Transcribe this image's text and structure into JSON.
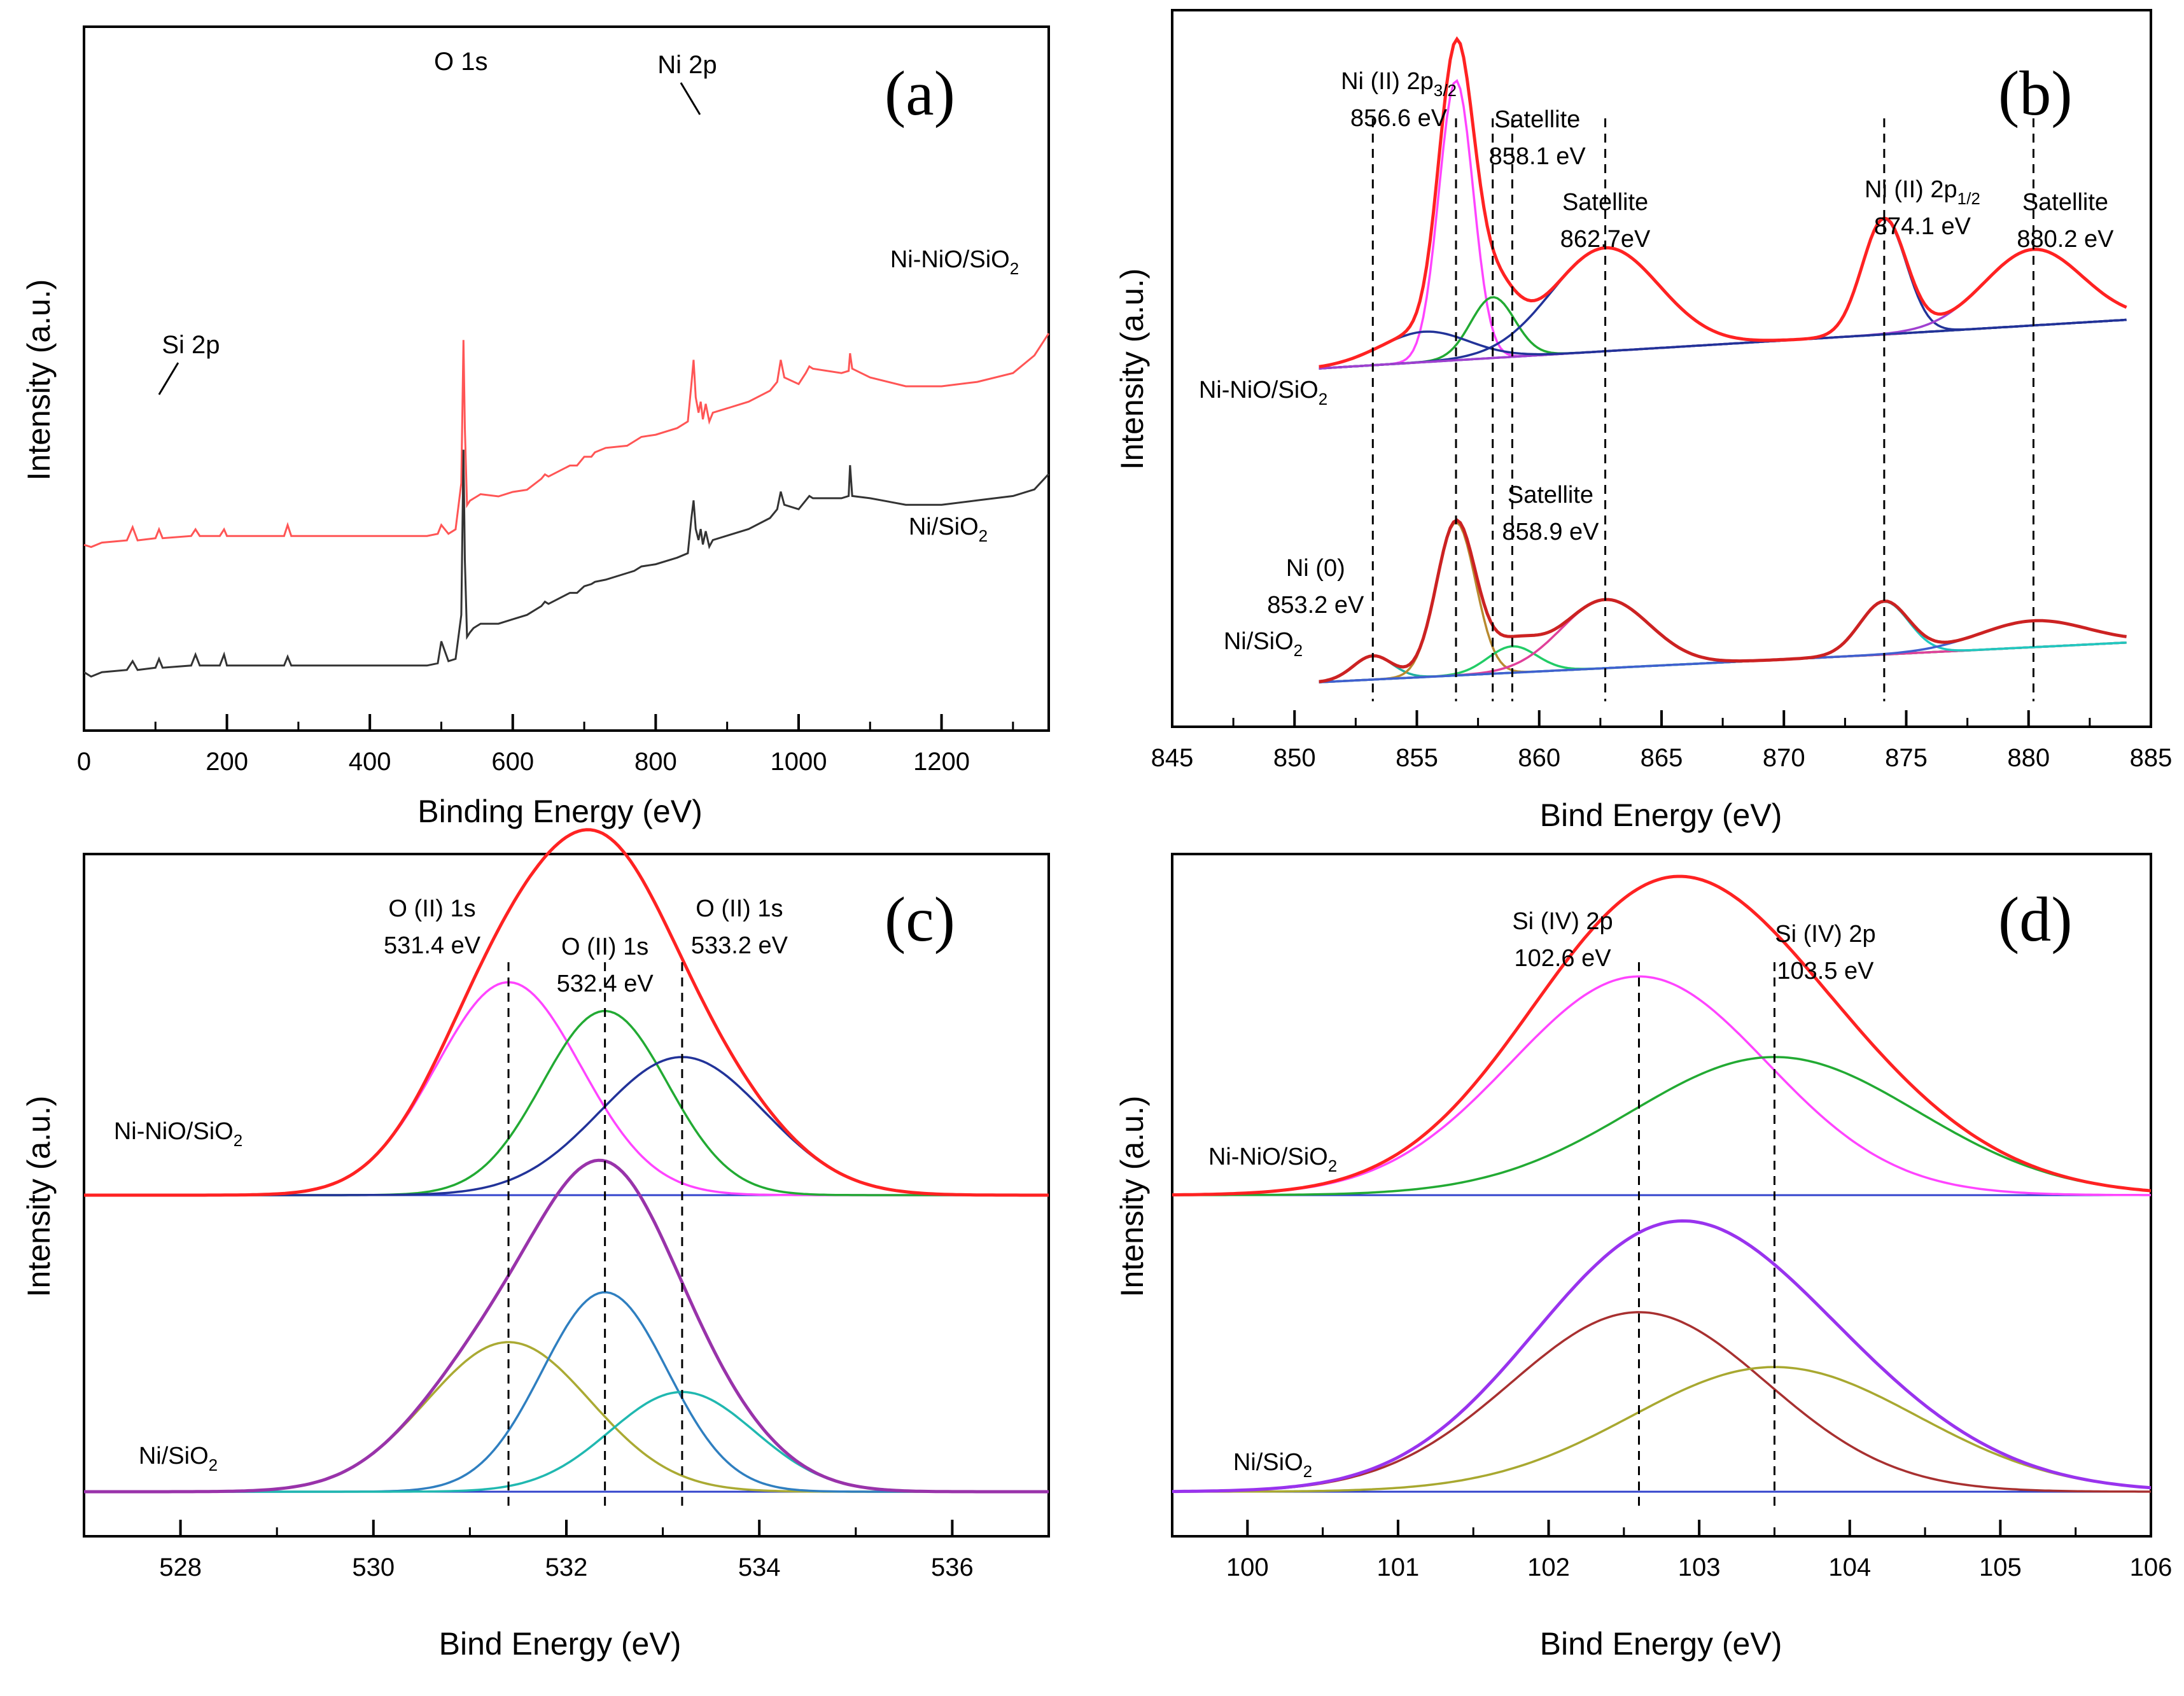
{
  "chart_data": [
    {
      "panel": "(a)",
      "type": "line",
      "title": "",
      "xlabel": "Binding Energy (eV)",
      "ylabel": "Intensity (a.u.)",
      "xlim": [
        0,
        1350
      ],
      "xticks": [
        0,
        200,
        400,
        600,
        800,
        1000,
        1200
      ],
      "series": [
        {
          "name": "Ni-NiO/SiO2",
          "label_main": "Ni-NiO/SiO",
          "label_sub": "2",
          "color": "#ff5555",
          "offset": 0.53,
          "x": [
            0,
            10,
            25,
            60,
            68,
            75,
            100,
            105,
            110,
            150,
            156,
            162,
            190,
            196,
            200,
            280,
            285,
            290,
            480,
            495,
            500,
            510,
            520,
            528,
            531,
            533,
            536,
            540,
            545,
            550,
            555,
            580,
            600,
            620,
            640,
            645,
            650,
            680,
            690,
            700,
            710,
            715,
            730,
            760,
            770,
            780,
            800,
            830,
            845,
            850,
            853,
            856,
            860,
            863,
            866,
            870,
            875,
            880,
            900,
            930,
            960,
            970,
            975,
            980,
            1000,
            1010,
            1015,
            1020,
            1060,
            1070,
            1072,
            1075,
            1100,
            1150,
            1200,
            1250,
            1300,
            1330,
            1350
          ],
          "y": [
            0.02,
            0.01,
            0.03,
            0.04,
            0.1,
            0.04,
            0.05,
            0.09,
            0.05,
            0.06,
            0.09,
            0.06,
            0.06,
            0.09,
            0.06,
            0.06,
            0.11,
            0.06,
            0.06,
            0.07,
            0.11,
            0.07,
            0.09,
            0.3,
            0.95,
            0.55,
            0.2,
            0.22,
            0.23,
            0.24,
            0.25,
            0.24,
            0.26,
            0.27,
            0.32,
            0.34,
            0.33,
            0.38,
            0.38,
            0.42,
            0.42,
            0.44,
            0.46,
            0.47,
            0.49,
            0.51,
            0.52,
            0.55,
            0.58,
            0.75,
            0.86,
            0.69,
            0.62,
            0.67,
            0.59,
            0.66,
            0.58,
            0.62,
            0.64,
            0.67,
            0.72,
            0.76,
            0.86,
            0.78,
            0.75,
            0.8,
            0.83,
            0.82,
            0.8,
            0.81,
            0.89,
            0.82,
            0.78,
            0.74,
            0.74,
            0.76,
            0.8,
            0.88,
            0.98
          ]
        },
        {
          "name": "Ni/SiO2",
          "label_main": "Ni/SiO",
          "label_sub": "2",
          "color": "#333333",
          "offset": 0.0,
          "x": [
            0,
            10,
            25,
            60,
            68,
            75,
            100,
            105,
            110,
            150,
            156,
            162,
            190,
            196,
            200,
            280,
            285,
            290,
            480,
            495,
            500,
            510,
            520,
            528,
            531,
            533,
            536,
            540,
            545,
            550,
            555,
            580,
            600,
            620,
            640,
            645,
            650,
            680,
            690,
            700,
            710,
            715,
            730,
            760,
            770,
            780,
            800,
            830,
            845,
            850,
            853,
            856,
            860,
            863,
            866,
            870,
            875,
            880,
            900,
            930,
            960,
            970,
            975,
            980,
            1000,
            1010,
            1015,
            1020,
            1060,
            1070,
            1072,
            1075,
            1100,
            1150,
            1200,
            1250,
            1300,
            1330,
            1350
          ],
          "y": [
            0.04,
            0.02,
            0.04,
            0.05,
            0.09,
            0.05,
            0.06,
            0.1,
            0.06,
            0.07,
            0.12,
            0.07,
            0.07,
            0.12,
            0.07,
            0.07,
            0.11,
            0.07,
            0.07,
            0.08,
            0.18,
            0.09,
            0.1,
            0.3,
            1.05,
            0.55,
            0.2,
            0.22,
            0.24,
            0.25,
            0.26,
            0.26,
            0.28,
            0.3,
            0.34,
            0.36,
            0.35,
            0.4,
            0.4,
            0.43,
            0.44,
            0.45,
            0.46,
            0.49,
            0.5,
            0.52,
            0.53,
            0.56,
            0.58,
            0.74,
            0.82,
            0.69,
            0.64,
            0.69,
            0.62,
            0.68,
            0.61,
            0.64,
            0.66,
            0.69,
            0.74,
            0.78,
            0.86,
            0.8,
            0.78,
            0.82,
            0.84,
            0.83,
            0.83,
            0.84,
            0.98,
            0.84,
            0.83,
            0.8,
            0.8,
            0.82,
            0.84,
            0.87,
            0.94
          ]
        }
      ],
      "annotations": [
        {
          "text": "O 1s",
          "x": 531
        },
        {
          "text": "Ni 2p",
          "x": 853
        },
        {
          "text": "Si 2p",
          "x": 105
        }
      ],
      "peak_x": [
        531,
        853,
        105
      ]
    },
    {
      "panel": "(b)",
      "type": "line",
      "title": "",
      "xlabel": "Bind Energy (eV)",
      "ylabel": "Intensity (a.u.)",
      "xlim": [
        845,
        885
      ],
      "xticks": [
        845,
        850,
        855,
        860,
        865,
        870,
        875,
        880,
        885
      ],
      "samples": [
        {
          "name": "Ni-NiO/SiO2",
          "label_main": "Ni-NiO/SiO",
          "label_sub": "2",
          "baseline": [
            0.0,
            0.16
          ],
          "components": [
            {
              "center": 856.6,
              "height": 0.92,
              "width": 0.7,
              "color": "#ff44ff"
            },
            {
              "center": 858.1,
              "height": 0.2,
              "width": 0.9,
              "color": "#22aa33"
            },
            {
              "center": 862.7,
              "height": 0.34,
              "width": 2.2,
              "color": "#223399"
            },
            {
              "center": 874.1,
              "height": 0.38,
              "width": 0.9,
              "color": "#223399"
            },
            {
              "center": 880.2,
              "height": 0.25,
              "width": 2.0,
              "color": "#a040d0"
            },
            {
              "center": 855.3,
              "height": 0.1,
              "width": 1.8,
              "color": "#223399"
            }
          ],
          "envelope_color": "#ff2222",
          "raw_color": "#111111"
        },
        {
          "name": "Ni/SiO2",
          "label_main": "Ni/SiO",
          "label_sub": "2",
          "baseline": [
            0.0,
            0.15
          ],
          "components": [
            {
              "center": 853.2,
              "height": 0.09,
              "width": 0.8,
              "color": "#20b0a0"
            },
            {
              "center": 856.6,
              "height": 0.58,
              "width": 0.8,
              "color": "#b88a30"
            },
            {
              "center": 858.9,
              "height": 0.1,
              "width": 1.0,
              "color": "#22cc66"
            },
            {
              "center": 862.7,
              "height": 0.26,
              "width": 1.8,
              "color": "#e0409a"
            },
            {
              "center": 874.1,
              "height": 0.2,
              "width": 1.0,
              "color": "#20c8c0"
            },
            {
              "center": 880.2,
              "height": 0.1,
              "width": 2.2,
              "color": "#4060d0"
            }
          ],
          "envelope_color": "#cc2222",
          "raw_color": "#8b1a1a"
        }
      ],
      "peak_labels": [
        {
          "line1_main": "Ni (II) 2p",
          "line1_sub": "3/2",
          "line2": "856.6 eV",
          "x": 856.6
        },
        {
          "line1": "Satellite",
          "line2": "858.1 eV",
          "x": 858.1
        },
        {
          "line1": "Satellite",
          "line2": "862.7eV",
          "x": 862.7
        },
        {
          "line1_main": "Ni (II) 2p",
          "line1_sub": "1/2",
          "line2": "874.1 eV",
          "x": 874.1
        },
        {
          "line1": "Satellite",
          "line2": "880.2 eV",
          "x": 880.2
        },
        {
          "line1": "Satellite",
          "line2": "858.9 eV",
          "x": 858.9
        },
        {
          "line1": "Ni (0)",
          "line2": "853.2 eV",
          "x": 853.2
        }
      ],
      "dashed_lines_x": [
        853.2,
        856.6,
        858.1,
        858.9,
        862.7,
        874.1,
        880.2
      ]
    },
    {
      "panel": "(c)",
      "type": "line",
      "title": "",
      "xlabel": "Bind Energy (eV)",
      "ylabel": "Intensity (a.u.)",
      "xlim": [
        527,
        537
      ],
      "xticks": [
        528,
        530,
        532,
        534,
        536
      ],
      "samples": [
        {
          "name": "Ni-NiO/SiO2",
          "label_main": "Ni-NiO/SiO",
          "label_sub": "2",
          "baseline": [
            0.0,
            0.0
          ],
          "components": [
            {
              "center": 531.4,
              "height": 0.74,
              "width": 0.75,
              "color": "#ff44ff"
            },
            {
              "center": 532.4,
              "height": 0.64,
              "width": 0.65,
              "color": "#22aa33"
            },
            {
              "center": 533.2,
              "height": 0.48,
              "width": 0.85,
              "color": "#223399"
            }
          ],
          "envelope_color": "#ff2222",
          "raw_color": "#111111"
        },
        {
          "name": "Ni/SiO2",
          "label_main": "Ni/SiO",
          "label_sub": "2",
          "baseline": [
            0.0,
            0.0
          ],
          "components": [
            {
              "center": 531.4,
              "height": 0.6,
              "width": 0.85,
              "color": "#aaaa33"
            },
            {
              "center": 532.4,
              "height": 0.8,
              "width": 0.65,
              "color": "#2f7fc0"
            },
            {
              "center": 533.2,
              "height": 0.4,
              "width": 0.75,
              "color": "#20b8b0"
            }
          ],
          "envelope_color": "#9933aa",
          "raw_color": "#4a2fb0"
        }
      ],
      "peak_labels": [
        {
          "line1": "O (II) 1s",
          "line2": "531.4 eV",
          "x": 531.4
        },
        {
          "line1": "O (II) 1s",
          "line2": "532.4 eV",
          "x": 532.4
        },
        {
          "line1": "O (II) 1s",
          "line2": "533.2 eV",
          "x": 533.2
        }
      ],
      "dashed_lines_x": [
        531.4,
        532.4,
        533.2
      ]
    },
    {
      "panel": "(d)",
      "type": "line",
      "title": "",
      "xlabel": "Bind Energy (eV)",
      "ylabel": "Intensity (a.u.)",
      "xlim": [
        99.5,
        106
      ],
      "xticks": [
        100,
        101,
        102,
        103,
        104,
        105,
        106
      ],
      "samples": [
        {
          "name": "Ni-NiO/SiO2",
          "label_main": "Ni-NiO/SiO",
          "label_sub": "2",
          "baseline": [
            0.0,
            0.0
          ],
          "components": [
            {
              "center": 102.6,
              "height": 0.76,
              "width": 0.85,
              "color": "#ff44ff"
            },
            {
              "center": 103.5,
              "height": 0.48,
              "width": 0.95,
              "color": "#22aa33"
            }
          ],
          "envelope_color": "#ff2222",
          "raw_color": "#111111"
        },
        {
          "name": "Ni/SiO2",
          "label_main": "Ni/SiO",
          "label_sub": "2",
          "baseline": [
            0.0,
            0.0
          ],
          "components": [
            {
              "center": 102.6,
              "height": 0.72,
              "width": 0.85,
              "color": "#a83030"
            },
            {
              "center": 103.5,
              "height": 0.5,
              "width": 0.95,
              "color": "#a8a830"
            }
          ],
          "envelope_color": "#9933ee",
          "raw_color": "#2233aa"
        }
      ],
      "peak_labels": [
        {
          "line1": "Si (IV) 2p",
          "line2": "102.6 eV",
          "x": 102.6
        },
        {
          "line1": "Si (IV) 2p",
          "line2": "103.5 eV",
          "x": 103.5
        }
      ],
      "dashed_lines_x": [
        102.6,
        103.5
      ]
    }
  ]
}
